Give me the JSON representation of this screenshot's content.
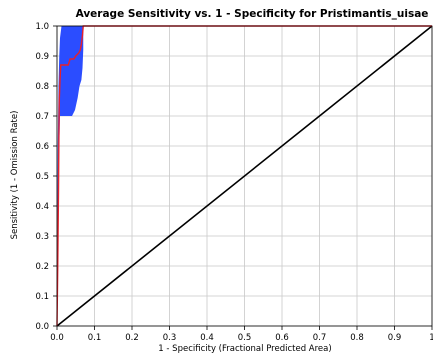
{
  "chart_data": {
    "type": "line",
    "title": "Average Sensitivity vs. 1 - Specificity for Pristimantis_uisae",
    "xlabel": "1 - Specificity (Fractional Predicted Area)",
    "ylabel": "Sensitivity (1 - Omission Rate)",
    "xlim": [
      0,
      1
    ],
    "ylim": [
      0,
      1
    ],
    "grid": true,
    "x_ticks": [
      "0.0",
      "0.1",
      "0.2",
      "0.3",
      "0.4",
      "0.5",
      "0.6",
      "0.7",
      "0.8",
      "0.9",
      "1"
    ],
    "y_ticks": [
      "0.0",
      "0.1",
      "0.2",
      "0.3",
      "0.4",
      "0.5",
      "0.6",
      "0.7",
      "0.8",
      "0.9",
      "1.0"
    ],
    "colors": {
      "mean": "#e8202a",
      "band": "#2b4dff",
      "random": "#000000",
      "grid": "#c8c8c8"
    },
    "series": [
      {
        "role": "mean",
        "x": [
          0,
          0.002,
          0.004,
          0.005,
          0.006,
          0.008,
          0.01,
          0.03,
          0.035,
          0.045,
          0.05,
          0.058,
          0.062,
          0.065,
          0.068,
          0.07,
          1.0
        ],
        "y": [
          0,
          0.2,
          0.45,
          0.62,
          0.75,
          0.82,
          0.87,
          0.87,
          0.89,
          0.89,
          0.9,
          0.91,
          0.92,
          0.94,
          0.97,
          1.0,
          1.0
        ]
      },
      {
        "role": "band",
        "x": [
          0,
          0.002,
          0.004,
          0.006,
          0.008,
          0.012,
          0.03,
          0.04,
          0.048,
          0.055,
          0.06,
          0.065,
          0.068,
          0.07,
          0.07,
          1.0
        ],
        "upper": [
          0,
          0.6,
          0.8,
          0.9,
          0.96,
          1.0,
          1.0,
          1.0,
          1.0,
          1.0,
          1.0,
          1.0,
          1.0,
          1.0,
          1.0,
          1.0
        ],
        "lower": [
          0,
          0.2,
          0.5,
          0.6,
          0.7,
          0.7,
          0.7,
          0.7,
          0.72,
          0.76,
          0.8,
          0.82,
          0.86,
          0.92,
          1.0,
          1.0
        ]
      },
      {
        "role": "random",
        "x": [
          0,
          1
        ],
        "y": [
          0,
          1
        ]
      }
    ]
  }
}
